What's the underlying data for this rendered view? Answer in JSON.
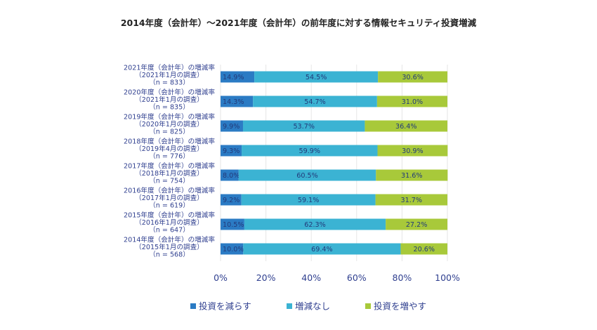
{
  "chart_data": {
    "type": "bar",
    "orientation": "horizontal",
    "stacked": true,
    "title": "2014年度（会計年）～2021年度（会計年）の前年度に対する情報セキュリティ投資増減",
    "categories": [
      [
        "2021年度（会計年）の増減率",
        "（2021年1月の調査）",
        "（n = 833）"
      ],
      [
        "2020年度（会計年）の増減率",
        "（2021年1月の調査）",
        "（n = 835）"
      ],
      [
        "2019年度（会計年）の増減率",
        "（2020年1月の調査）",
        "（n = 825）"
      ],
      [
        "2018年度（会計年）の増減率",
        "（2019年4月の調査）",
        "（n = 776）"
      ],
      [
        "2017年度（会計年）の増減率",
        "（2018年1月の調査）",
        "（n = 754）"
      ],
      [
        "2016年度（会計年）の増減率",
        "（2017年1月の調査）",
        "（n = 619）"
      ],
      [
        "2015年度（会計年）の増減率",
        "（2016年1月の調査）",
        "（n = 647）"
      ],
      [
        "2014年度（会計年）の増減率",
        "（2015年1月の調査）",
        "（n = 568）"
      ]
    ],
    "series": [
      {
        "name": "投資を減らす",
        "color": "#2b7bc4",
        "values": [
          14.9,
          14.3,
          9.9,
          9.3,
          8.0,
          9.2,
          10.5,
          10.0
        ]
      },
      {
        "name": "増減なし",
        "color": "#3bb3d3",
        "values": [
          54.5,
          54.7,
          53.7,
          59.9,
          60.5,
          59.1,
          62.3,
          69.4
        ]
      },
      {
        "name": "投資を増やす",
        "color": "#a8c93a",
        "values": [
          30.6,
          31.0,
          36.4,
          30.9,
          31.6,
          31.7,
          27.2,
          20.6
        ]
      }
    ],
    "xlim": [
      0,
      100
    ],
    "xticks": [
      "0%",
      "20%",
      "40%",
      "60%",
      "80%",
      "100%"
    ],
    "value_suffix": "%",
    "grid": true,
    "legend_position": "bottom"
  }
}
